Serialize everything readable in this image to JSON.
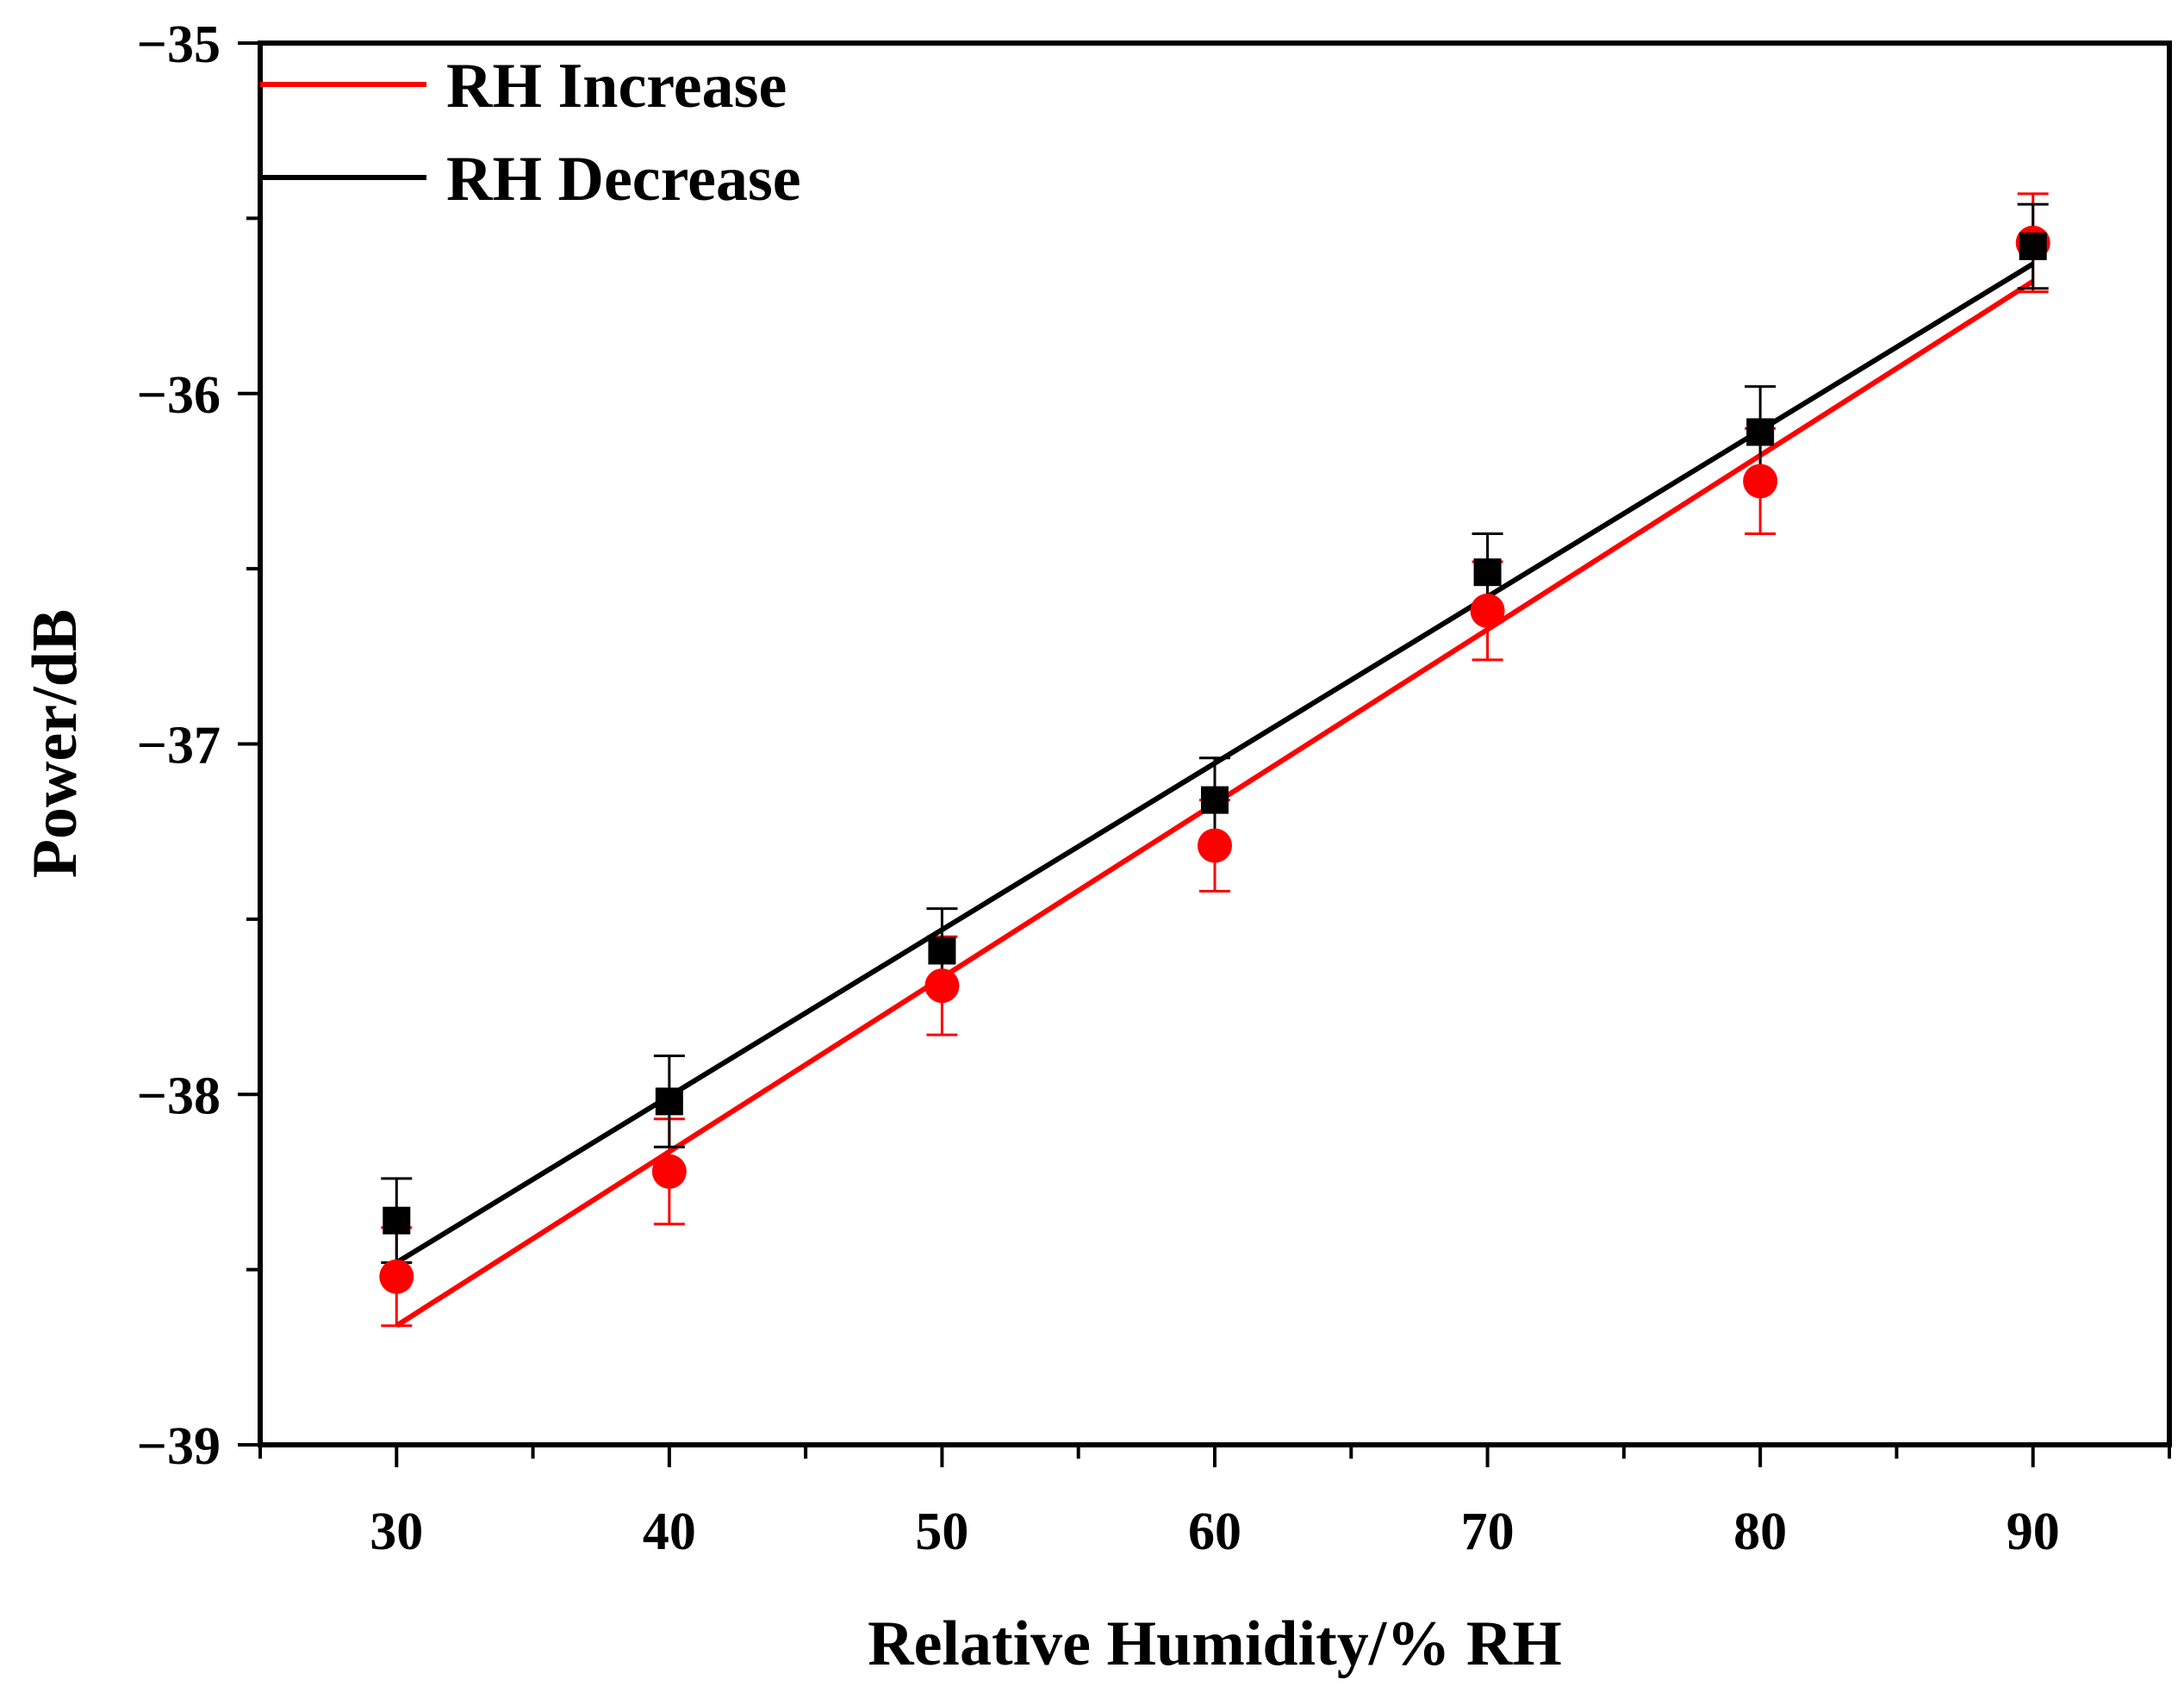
{
  "chart_data": {
    "type": "scatter",
    "title": "",
    "xlabel": "Relative Humidity/% RH",
    "ylabel": "Power/dB",
    "xlim": [
      25,
      95
    ],
    "ylim": [
      -39,
      -35
    ],
    "x_ticks": [
      30,
      40,
      50,
      60,
      70,
      80,
      90
    ],
    "x_tick_labels": [
      "30",
      "40",
      "50",
      "60",
      "70",
      "80",
      "90"
    ],
    "y_ticks": [
      -39,
      -38,
      -37,
      -36,
      -35
    ],
    "y_tick_labels": [
      "−39",
      "−38",
      "−37",
      "−36",
      "−35"
    ],
    "grid": false,
    "legend_position": "top-left",
    "series": [
      {
        "name": "RH Increase",
        "color": "#ff0000",
        "marker": "circle",
        "x": [
          30,
          40,
          50,
          60,
          70,
          80,
          90
        ],
        "y": [
          -38.52,
          -38.22,
          -37.69,
          -37.29,
          -36.62,
          -36.25,
          -35.57
        ],
        "err": [
          0.14,
          0.15,
          0.14,
          0.13,
          0.14,
          0.15,
          0.14
        ],
        "fit": {
          "x": [
            30,
            90
          ],
          "y": [
            -38.66,
            -35.68
          ]
        }
      },
      {
        "name": "RH Decrease",
        "color": "#000000",
        "marker": "square",
        "x": [
          30,
          40,
          50,
          60,
          70,
          80,
          90
        ],
        "y": [
          -38.36,
          -38.02,
          -37.59,
          -37.16,
          -36.51,
          -36.11,
          -35.58
        ],
        "err": [
          0.12,
          0.13,
          0.12,
          0.12,
          0.11,
          0.13,
          0.12
        ],
        "fit": {
          "x": [
            30,
            90
          ],
          "y": [
            -38.48,
            -35.63
          ]
        }
      }
    ]
  }
}
